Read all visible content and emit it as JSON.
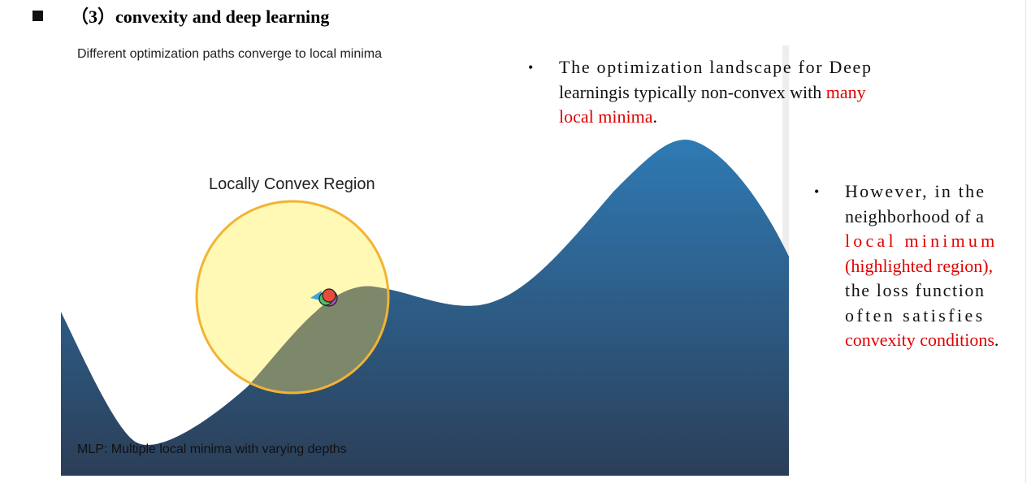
{
  "heading": {
    "marker": "square",
    "text": "（3）convexity and deep learning"
  },
  "figure": {
    "title": "Different optimization paths converge to local minima",
    "region_label": "Locally Convex Region",
    "caption": "MLP: Multiple local minima with varying depths",
    "colors": {
      "surface_top": "#2f7ab4",
      "surface_bottom": "#2b3e57",
      "region_fill": "#fff9b5",
      "region_stroke": "#f3b334",
      "marker_red": "#e84a3c",
      "marker_green": "#4bbf63",
      "marker_purple": "#9b59b6",
      "marker_blue": "#3aa6e0"
    }
  },
  "bullets": [
    {
      "lines": [
        [
          {
            "text": "The optimization landscape for Deep",
            "color": "black"
          }
        ],
        [
          {
            "text": "learningis typically non-convex with ",
            "color": "black"
          },
          {
            "text": "many",
            "color": "red"
          }
        ],
        [
          {
            "text": "local minima",
            "color": "red"
          },
          {
            "text": ".",
            "color": "black"
          }
        ]
      ]
    },
    {
      "lines": [
        [
          {
            "text": "However, in the",
            "color": "black"
          }
        ],
        [
          {
            "text": "neighborhood of a",
            "color": "black"
          }
        ],
        [
          {
            "text": "local minimum",
            "color": "red"
          }
        ],
        [
          {
            "text": "(highlighted region),",
            "color": "red"
          }
        ],
        [
          {
            "text": "the loss function",
            "color": "black"
          }
        ],
        [
          {
            "text": "often satisfies",
            "color": "black"
          }
        ],
        [
          {
            "text": "convexity conditions",
            "color": "red"
          },
          {
            "text": ".",
            "color": "black"
          }
        ]
      ]
    }
  ]
}
